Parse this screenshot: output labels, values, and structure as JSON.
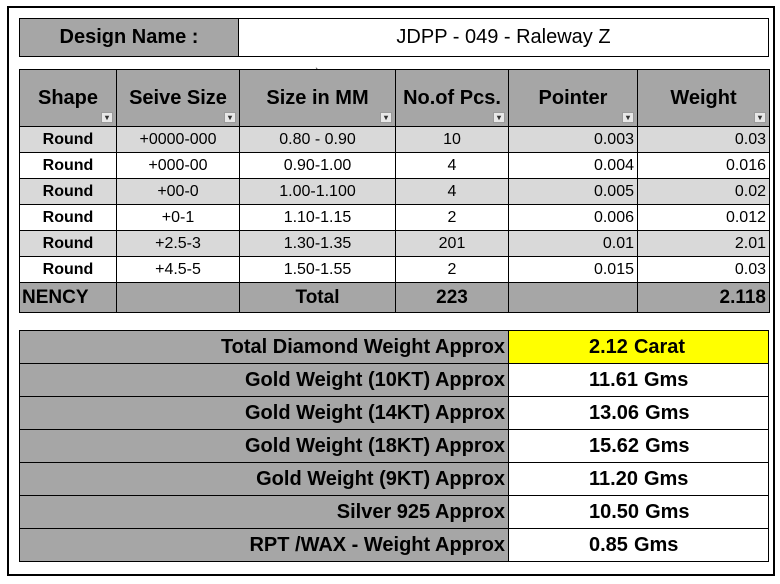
{
  "design": {
    "label": "Design Name :",
    "value": "JDPP - 049 - Raleway Z"
  },
  "table": {
    "headers": {
      "shape": "Shape",
      "seive": "Seive Size",
      "size_mm": "Size in MM",
      "pcs": "No.of Pcs.",
      "pointer": "Pointer",
      "weight": "Weight"
    },
    "filter_icons": {
      "default": "▾",
      "active": "▾"
    },
    "rows": [
      {
        "shape": "Round",
        "seive": "+0000-000",
        "size_mm": "0.80 - 0.90",
        "pcs": "10",
        "pointer": "0.003",
        "weight": "0.03"
      },
      {
        "shape": "Round",
        "seive": "+000-00",
        "size_mm": "0.90-1.00",
        "pcs": "4",
        "pointer": "0.004",
        "weight": "0.016"
      },
      {
        "shape": "Round",
        "seive": "+00-0",
        "size_mm": "1.00-1.100",
        "pcs": "4",
        "pointer": "0.005",
        "weight": "0.02"
      },
      {
        "shape": "Round",
        "seive": "+0-1",
        "size_mm": "1.10-1.15",
        "pcs": "2",
        "pointer": "0.006",
        "weight": "0.012"
      },
      {
        "shape": "Round",
        "seive": "+2.5-3",
        "size_mm": "1.30-1.35",
        "pcs": "201",
        "pointer": "0.01",
        "weight": "2.01"
      },
      {
        "shape": "Round",
        "seive": "+4.5-5",
        "size_mm": "1.50-1.55",
        "pcs": "2",
        "pointer": "0.015",
        "weight": "0.03"
      }
    ],
    "total": {
      "name": "NENCY",
      "label": "Total",
      "pcs": "223",
      "weight": "2.118"
    }
  },
  "summary": [
    {
      "label": "Total Diamond Weight Approx",
      "value": "2.12",
      "unit": "Carat",
      "highlight": true
    },
    {
      "label": "Gold Weight (10KT) Approx",
      "value": "11.61",
      "unit": "Gms"
    },
    {
      "label": "Gold Weight (14KT) Approx",
      "value": "13.06",
      "unit": "Gms"
    },
    {
      "label": "Gold Weight (18KT) Approx",
      "value": "15.62",
      "unit": "Gms"
    },
    {
      "label": "Gold Weight (9KT) Approx",
      "value": "11.20",
      "unit": "Gms"
    },
    {
      "label": "Silver 925 Approx",
      "value": "10.50",
      "unit": "Gms"
    },
    {
      "label": "RPT /WAX - Weight Approx",
      "value": "0.85",
      "unit": "Gms"
    }
  ],
  "colors": {
    "header_gray": "#a6a6a6",
    "row_alt": "#d9d9d9",
    "highlight": "#ffff00"
  }
}
